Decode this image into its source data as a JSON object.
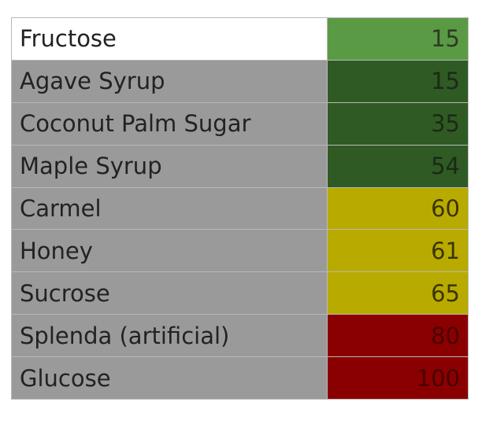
{
  "table": {
    "rows": [
      [
        "Fructose",
        15
      ],
      [
        "Agave Syrup",
        15
      ],
      [
        "Coconut Palm Sugar",
        35
      ],
      [
        "Maple Syrup",
        54
      ],
      [
        "Carmel",
        60
      ],
      [
        "Honey",
        61
      ],
      [
        "Sucrose",
        65
      ],
      [
        "Splenda (artificial)",
        80
      ],
      [
        "Glucose",
        100
      ]
    ]
  }
}
